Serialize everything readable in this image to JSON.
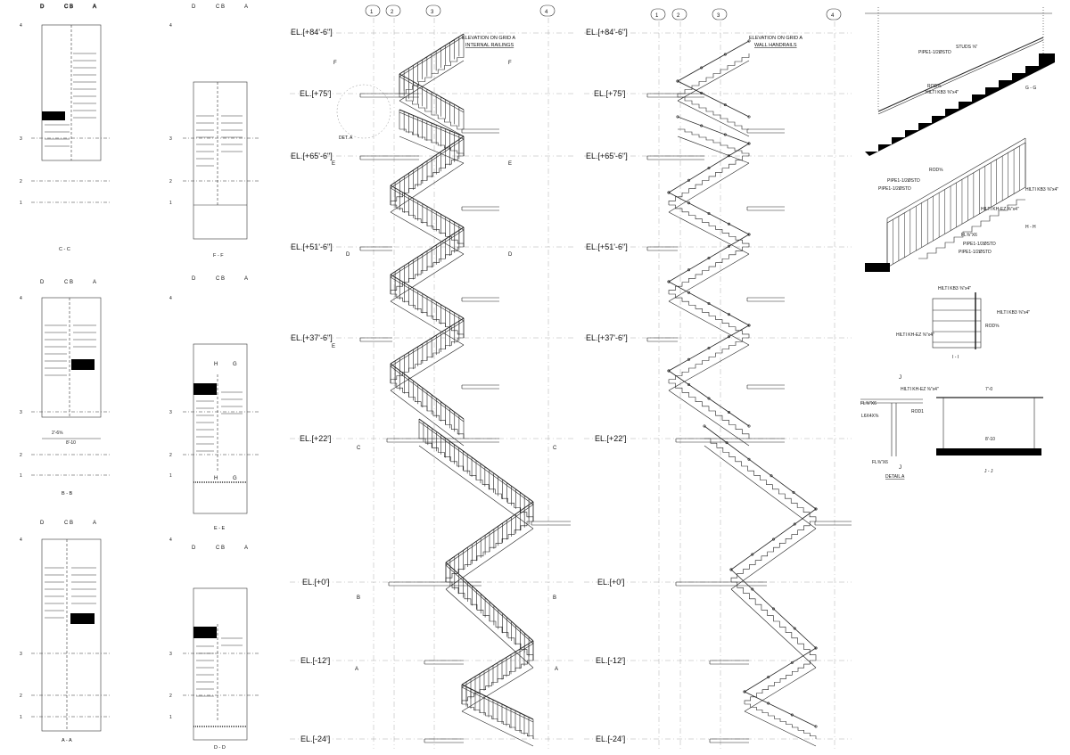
{
  "grid_letters": {
    "d": "D",
    "cb": "C B",
    "a": "A"
  },
  "grid_numbers": [
    "1",
    "2",
    "3",
    "4"
  ],
  "plans": [
    {
      "id": "cc",
      "title": "C - C"
    },
    {
      "id": "ff",
      "title": "F - F"
    },
    {
      "id": "bb",
      "title": "B - B"
    },
    {
      "id": "ee",
      "title": "E - E"
    },
    {
      "id": "aa",
      "title": "A - A"
    },
    {
      "id": "dd",
      "title": "D - D"
    }
  ],
  "elevations": {
    "railings": {
      "title_1": "ELEVATION ON GRID A",
      "title_2": "INTERNAL RAILINGS"
    },
    "handrails": {
      "title_1": "ELEVATION ON GRID A",
      "title_2": "WALL HANDRAILS"
    }
  },
  "levels": [
    "EL.[+84'-6\"]",
    "EL.[+75']",
    "EL.[+65'-6\"]",
    "EL.[+51'-6\"]",
    "EL.[+37'-6\"]",
    "EL.[+22']",
    "EL.[+0']",
    "EL.[-12']",
    "EL.[-24']"
  ],
  "section_marks": {
    "f": "F",
    "e": "E",
    "d": "D",
    "c": "C",
    "b": "B",
    "a": "A",
    "h": "H",
    "g": "G",
    "j": "J"
  },
  "detail_marker": "DET. A",
  "details": {
    "gg": "G - G",
    "hh": "H - H",
    "ii": "I - I",
    "jj": "J - J",
    "detail_a": "DETAIL A",
    "pipe": "PIPE1-1/2ØSTD",
    "stud": "STUDS ⅝\"",
    "rod": "ROD⅝",
    "hilti1": "HILTI KH-EZ ⅜\"x4\"",
    "hilti2": "HILTI KB3 ⅜\"x4\"",
    "flat": "FL⅜\"X6",
    "rod1": "ROD1",
    "l6x4": "L6X4X⅜"
  },
  "dims": {
    "d1": "2'-6⅝",
    "d2": "8'-10",
    "d3": "7'-0",
    "d4": "1'-1⅞",
    "d5": "3⅝"
  }
}
